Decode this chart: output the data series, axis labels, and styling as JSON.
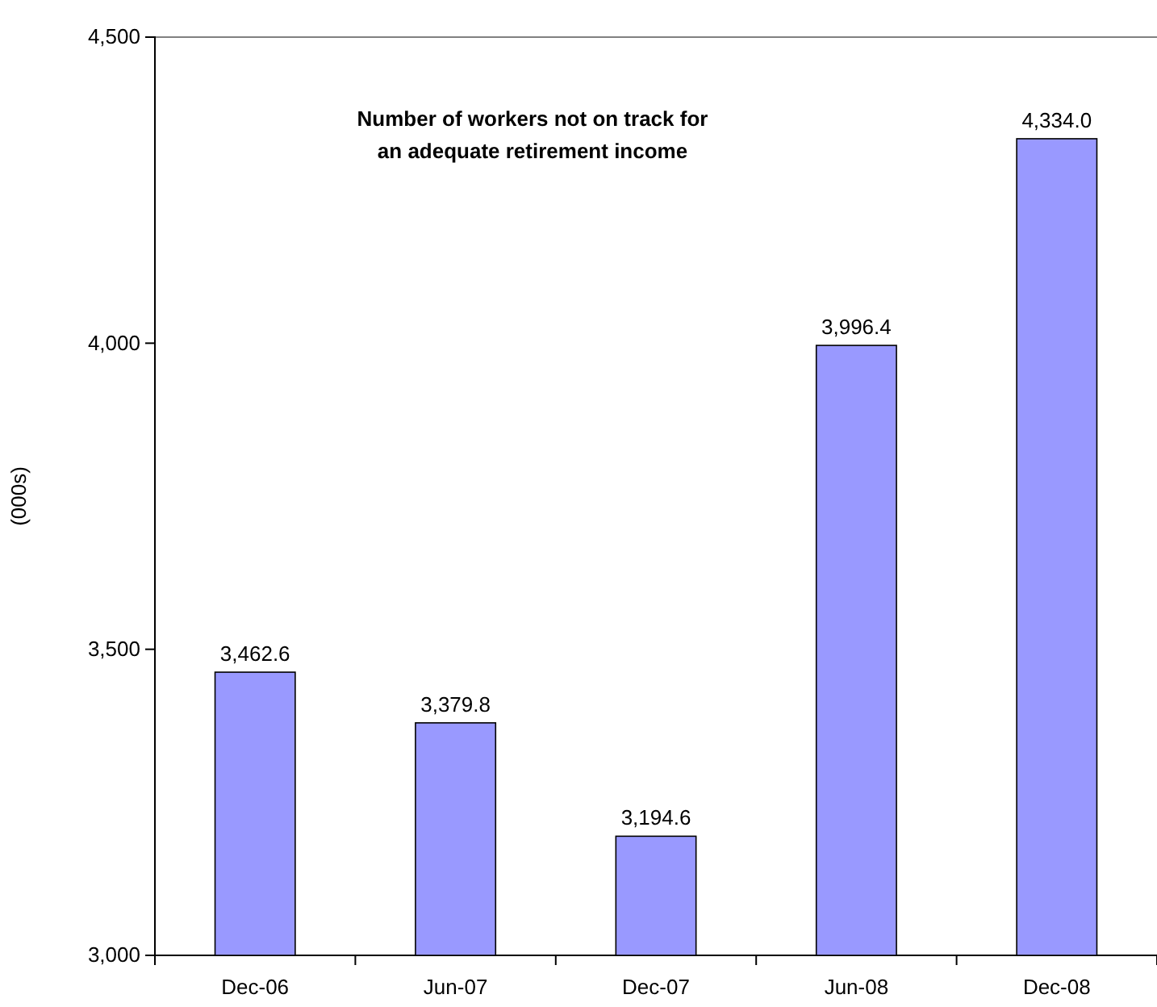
{
  "chart_data": {
    "type": "bar",
    "title": "Number of workers not on track for\nan adequate retirement income",
    "ylabel": "(000s)",
    "categories": [
      "Dec-06",
      "Jun-07",
      "Dec-07",
      "Jun-08",
      "Dec-08"
    ],
    "values": [
      3462.6,
      3379.8,
      3194.6,
      3996.4,
      4334.0
    ],
    "value_labels": [
      "3,462.6",
      "3,379.8",
      "3,194.6",
      "3,996.4",
      "4,334.0"
    ],
    "color": "#9999ff",
    "ylim": [
      3000,
      4500
    ],
    "yticks": [
      {
        "value": 3000,
        "label": "3,000"
      },
      {
        "value": 3500,
        "label": "3,500"
      },
      {
        "value": 4000,
        "label": "4,000"
      },
      {
        "value": 4500,
        "label": "4,500"
      }
    ],
    "grid": false
  }
}
